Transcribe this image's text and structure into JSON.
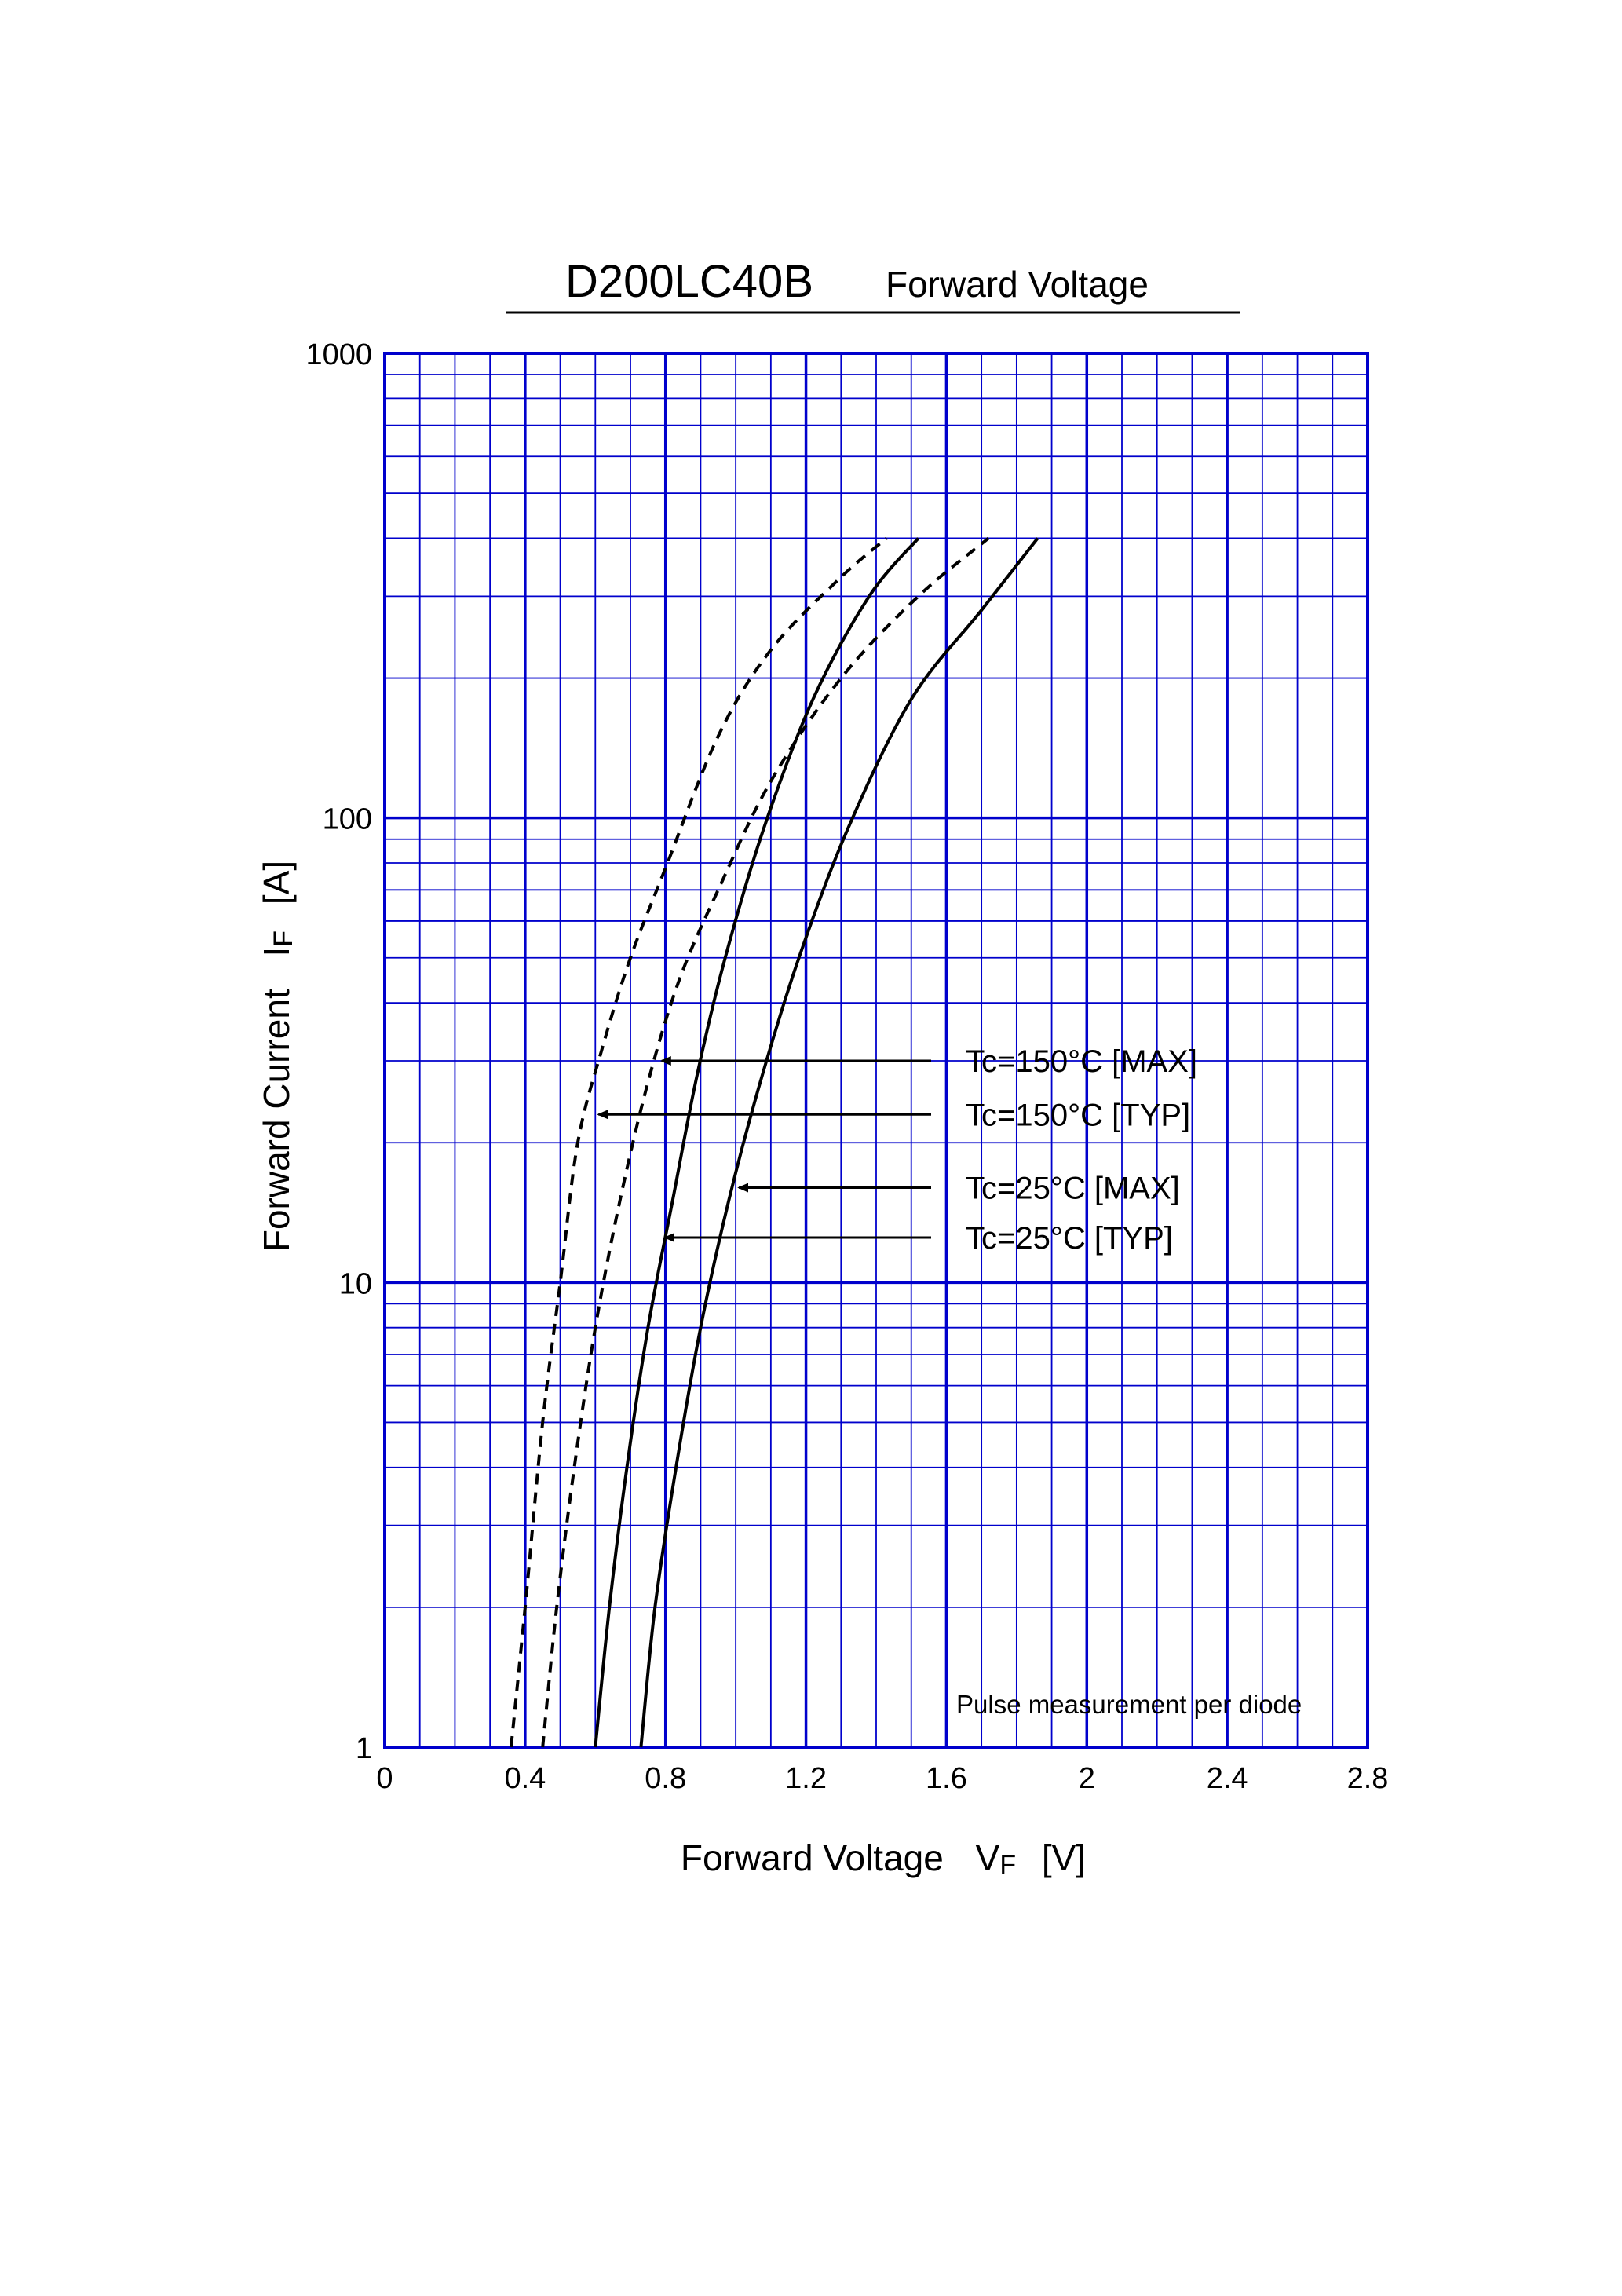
{
  "chart_data": {
    "type": "line",
    "title": "D200LC40B",
    "subtitle": "Forward Voltage",
    "xlabel": "Forward Voltage",
    "xlabel_symbol": "V",
    "xlabel_sub": "F",
    "xlabel_unit": "[V]",
    "ylabel": "Forward Current",
    "ylabel_symbol": "I",
    "ylabel_sub": "F",
    "ylabel_unit": "[A]",
    "x_scale": "linear",
    "y_scale": "log",
    "xlim": [
      0,
      2.8
    ],
    "ylim": [
      1,
      1000
    ],
    "x_ticks": [
      0,
      0.4,
      0.8,
      1.2,
      1.6,
      2,
      2.4,
      2.8
    ],
    "x_tick_labels": [
      "0",
      "0.4",
      "0.8",
      "1.2",
      "1.6",
      "2",
      "2.4",
      "2.8"
    ],
    "y_ticks": [
      1,
      10,
      100,
      1000
    ],
    "y_tick_labels": [
      "1",
      "10",
      "100",
      "1000"
    ],
    "grid": true,
    "grid_color": "#0000cc",
    "line_color": "#000000",
    "note": "Pulse measurement per diode",
    "series": [
      {
        "name": "Tc=150°C [TYP]",
        "style": "dashed",
        "x": [
          0.36,
          0.4,
          0.45,
          0.5,
          0.55,
          0.62,
          0.7,
          0.8,
          0.95,
          1.1,
          1.3,
          1.43
        ],
        "y": [
          1,
          2,
          5,
          10,
          20,
          32,
          50,
          78,
          150,
          230,
          330,
          400
        ]
      },
      {
        "name": "Tc=150°C [MAX]",
        "style": "dashed",
        "x": [
          0.45,
          0.49,
          0.54,
          0.6,
          0.67,
          0.75,
          0.84,
          0.95,
          1.1,
          1.3,
          1.52,
          1.72
        ],
        "y": [
          1,
          2,
          4,
          8,
          15,
          27,
          45,
          70,
          120,
          200,
          300,
          400
        ]
      },
      {
        "name": "Tc=25°C [TYP]",
        "style": "solid",
        "x": [
          0.6,
          0.64,
          0.69,
          0.75,
          0.82,
          0.89,
          0.97,
          1.08,
          1.22,
          1.38,
          1.52
        ],
        "y": [
          1,
          2,
          4,
          8,
          15,
          28,
          50,
          95,
          180,
          300,
          400
        ]
      },
      {
        "name": "Tc=25°C [MAX]",
        "style": "solid",
        "x": [
          0.73,
          0.77,
          0.83,
          0.9,
          0.98,
          1.07,
          1.18,
          1.32,
          1.5,
          1.7,
          1.86
        ],
        "y": [
          1,
          2,
          4,
          8,
          15,
          27,
          50,
          95,
          180,
          280,
          400
        ]
      }
    ],
    "annotations": [
      {
        "text": "Tc=150°C [MAX]",
        "arrow_to_x": 0.78,
        "arrow_to_y": 30
      },
      {
        "text": "Tc=150°C [TYP]",
        "arrow_to_x": 0.6,
        "arrow_to_y": 23
      },
      {
        "text": "Tc=25°C [MAX]",
        "arrow_to_x": 1.0,
        "arrow_to_y": 16
      },
      {
        "text": "Tc=25°C [TYP]",
        "arrow_to_x": 0.79,
        "arrow_to_y": 12.5
      }
    ]
  }
}
